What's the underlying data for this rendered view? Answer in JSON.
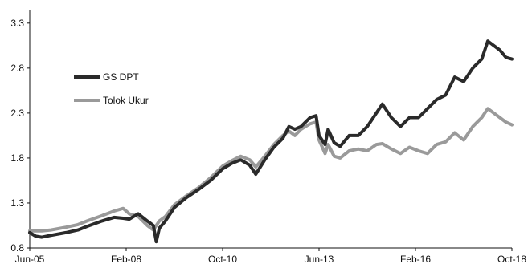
{
  "chart_data": {
    "type": "line",
    "title": "",
    "xlabel": "",
    "ylabel": "",
    "x_axis": {
      "ticks": [
        "Jun-05",
        "Feb-08",
        "Oct-10",
        "Jun-13",
        "Feb-16",
        "Oct-18"
      ],
      "range": [
        "2005-06",
        "2018-10"
      ]
    },
    "y_axis": {
      "ticks": [
        "0.8",
        "1.3",
        "1.8",
        "2.3",
        "2.8",
        "3.3"
      ],
      "ylim": [
        0.8,
        3.45
      ]
    },
    "grid": false,
    "legend_placement": "upper-left",
    "series": [
      {
        "name": "GS DPT",
        "color": "#2a2a2a",
        "points": [
          [
            "2005-06",
            0.97
          ],
          [
            "2005-08",
            0.93
          ],
          [
            "2005-10",
            0.92
          ],
          [
            "2006-01",
            0.94
          ],
          [
            "2006-06",
            0.97
          ],
          [
            "2006-10",
            1.0
          ],
          [
            "2007-01",
            1.04
          ],
          [
            "2007-06",
            1.1
          ],
          [
            "2007-10",
            1.14
          ],
          [
            "2008-01",
            1.13
          ],
          [
            "2008-03",
            1.12
          ],
          [
            "2008-06",
            1.18
          ],
          [
            "2008-09",
            1.1
          ],
          [
            "2008-11",
            1.05
          ],
          [
            "2008-12",
            0.87
          ],
          [
            "2009-01",
            1.02
          ],
          [
            "2009-03",
            1.1
          ],
          [
            "2009-06",
            1.25
          ],
          [
            "2009-10",
            1.36
          ],
          [
            "2010-02",
            1.45
          ],
          [
            "2010-06",
            1.55
          ],
          [
            "2010-10",
            1.68
          ],
          [
            "2011-01",
            1.74
          ],
          [
            "2011-04",
            1.78
          ],
          [
            "2011-07",
            1.72
          ],
          [
            "2011-09",
            1.62
          ],
          [
            "2011-12",
            1.78
          ],
          [
            "2012-03",
            1.92
          ],
          [
            "2012-06",
            2.02
          ],
          [
            "2012-08",
            2.15
          ],
          [
            "2012-10",
            2.12
          ],
          [
            "2012-12",
            2.15
          ],
          [
            "2013-03",
            2.25
          ],
          [
            "2013-05",
            2.27
          ],
          [
            "2013-06",
            2.05
          ],
          [
            "2013-08",
            1.95
          ],
          [
            "2013-09",
            2.12
          ],
          [
            "2013-11",
            1.97
          ],
          [
            "2014-01",
            1.93
          ],
          [
            "2014-04",
            2.05
          ],
          [
            "2014-07",
            2.05
          ],
          [
            "2014-10",
            2.15
          ],
          [
            "2015-01",
            2.3
          ],
          [
            "2015-03",
            2.4
          ],
          [
            "2015-06",
            2.25
          ],
          [
            "2015-09",
            2.15
          ],
          [
            "2015-12",
            2.25
          ],
          [
            "2016-03",
            2.25
          ],
          [
            "2016-06",
            2.35
          ],
          [
            "2016-09",
            2.45
          ],
          [
            "2016-12",
            2.5
          ],
          [
            "2017-03",
            2.7
          ],
          [
            "2017-06",
            2.65
          ],
          [
            "2017-09",
            2.8
          ],
          [
            "2017-12",
            2.9
          ],
          [
            "2018-02",
            3.1
          ],
          [
            "2018-04",
            3.05
          ],
          [
            "2018-06",
            3.0
          ],
          [
            "2018-08",
            2.92
          ],
          [
            "2018-10",
            2.9
          ]
        ]
      },
      {
        "name": "Tolok Ukur",
        "color": "#9a9a9a",
        "points": [
          [
            "2005-06",
            0.99
          ],
          [
            "2005-10",
            0.99
          ],
          [
            "2006-01",
            1.0
          ],
          [
            "2006-06",
            1.03
          ],
          [
            "2006-10",
            1.06
          ],
          [
            "2007-01",
            1.1
          ],
          [
            "2007-06",
            1.16
          ],
          [
            "2007-10",
            1.21
          ],
          [
            "2008-01",
            1.24
          ],
          [
            "2008-03",
            1.18
          ],
          [
            "2008-06",
            1.15
          ],
          [
            "2008-09",
            1.05
          ],
          [
            "2008-11",
            1.0
          ],
          [
            "2008-12",
            1.05
          ],
          [
            "2009-01",
            1.1
          ],
          [
            "2009-03",
            1.15
          ],
          [
            "2009-06",
            1.28
          ],
          [
            "2009-10",
            1.38
          ],
          [
            "2010-02",
            1.47
          ],
          [
            "2010-06",
            1.58
          ],
          [
            "2010-10",
            1.71
          ],
          [
            "2011-01",
            1.77
          ],
          [
            "2011-04",
            1.82
          ],
          [
            "2011-07",
            1.78
          ],
          [
            "2011-09",
            1.7
          ],
          [
            "2011-12",
            1.82
          ],
          [
            "2012-03",
            1.95
          ],
          [
            "2012-06",
            2.05
          ],
          [
            "2012-08",
            2.1
          ],
          [
            "2012-10",
            2.05
          ],
          [
            "2012-12",
            2.12
          ],
          [
            "2013-03",
            2.18
          ],
          [
            "2013-05",
            2.2
          ],
          [
            "2013-06",
            2.0
          ],
          [
            "2013-08",
            1.85
          ],
          [
            "2013-09",
            1.95
          ],
          [
            "2013-11",
            1.82
          ],
          [
            "2014-01",
            1.8
          ],
          [
            "2014-04",
            1.88
          ],
          [
            "2014-07",
            1.9
          ],
          [
            "2014-10",
            1.88
          ],
          [
            "2015-01",
            1.95
          ],
          [
            "2015-03",
            1.96
          ],
          [
            "2015-06",
            1.9
          ],
          [
            "2015-09",
            1.85
          ],
          [
            "2015-12",
            1.92
          ],
          [
            "2016-03",
            1.88
          ],
          [
            "2016-06",
            1.85
          ],
          [
            "2016-09",
            1.95
          ],
          [
            "2016-12",
            1.98
          ],
          [
            "2017-03",
            2.08
          ],
          [
            "2017-06",
            2.0
          ],
          [
            "2017-09",
            2.15
          ],
          [
            "2017-12",
            2.25
          ],
          [
            "2018-02",
            2.35
          ],
          [
            "2018-04",
            2.3
          ],
          [
            "2018-06",
            2.25
          ],
          [
            "2018-08",
            2.2
          ],
          [
            "2018-10",
            2.17
          ]
        ]
      }
    ]
  }
}
